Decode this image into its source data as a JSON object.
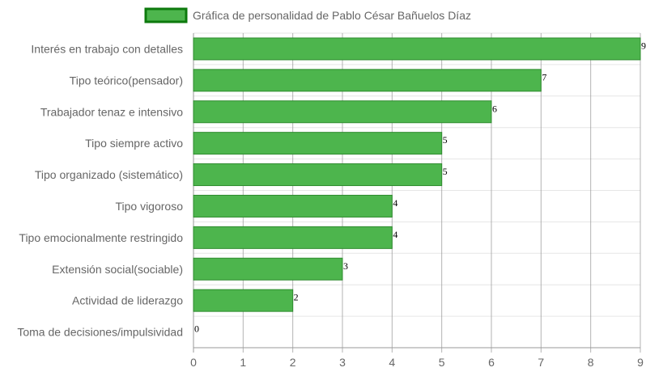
{
  "chart_data": {
    "type": "bar",
    "orientation": "horizontal",
    "categories": [
      "Interés en trabajo con detalles",
      "Tipo teórico(pensador)",
      "Trabajador tenaz e intensivo",
      "Tipo siempre activo",
      "Tipo organizado (sistemático)",
      "Tipo vigoroso",
      "Tipo emocionalmente restringido",
      "Extensión social(sociable)",
      "Actividad de liderazgo",
      "Toma de decisiones/impulsividad"
    ],
    "series": [
      {
        "name": "Gráfica de personalidad de Pablo César Bañuelos Díaz",
        "values": [
          9,
          7,
          6,
          5,
          5,
          4,
          4,
          3,
          2,
          0
        ]
      }
    ],
    "xlim": [
      0,
      9
    ],
    "x_ticks": [
      "0",
      "1",
      "2",
      "3",
      "4",
      "5",
      "6",
      "7",
      "8",
      "9"
    ],
    "grid": true,
    "legend_position": "top-center",
    "data_labels": true,
    "colors": {
      "bar_fill": "#4db54d",
      "bar_border": "#2e8b2e",
      "legend_fill": "#4db54d",
      "legend_border": "#0d7a0d",
      "grid": "#e6e6e6",
      "grid_major": "#999999"
    }
  }
}
